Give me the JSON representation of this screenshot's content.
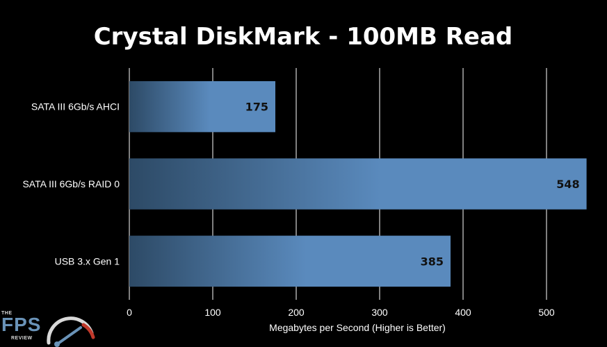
{
  "chart_data": {
    "type": "bar",
    "orientation": "horizontal",
    "title": "Crystal DiskMark - 100MB Read",
    "xlabel": "Megabytes per Second (Higher is Better)",
    "ylabel": "",
    "categories": [
      "SATA III 6Gb/s AHCI",
      "SATA III 6Gb/s RAID 0",
      "USB 3.x Gen 1"
    ],
    "values": [
      175,
      548,
      385
    ],
    "data_labels": [
      "175",
      "548",
      "385"
    ],
    "xlim": [
      0,
      550
    ],
    "x_ticks": [
      0,
      100,
      200,
      300,
      400,
      500
    ],
    "x_tick_labels": [
      "0",
      "100",
      "200",
      "300",
      "400",
      "500"
    ],
    "grid": "vertical",
    "legend": "none",
    "bar_color": "#5a8abd",
    "bar_color_dark": "#2d4a66",
    "gridline_color": "#ffffff",
    "background_color": "#000000"
  },
  "logo": {
    "top_text": "THE",
    "main_text": "FPS",
    "bottom_text": "REVIEW",
    "icon": "speedometer-icon",
    "colors": {
      "main": "#6a93b8",
      "accent": "#c0392b",
      "text": "#d9d9d9"
    }
  }
}
